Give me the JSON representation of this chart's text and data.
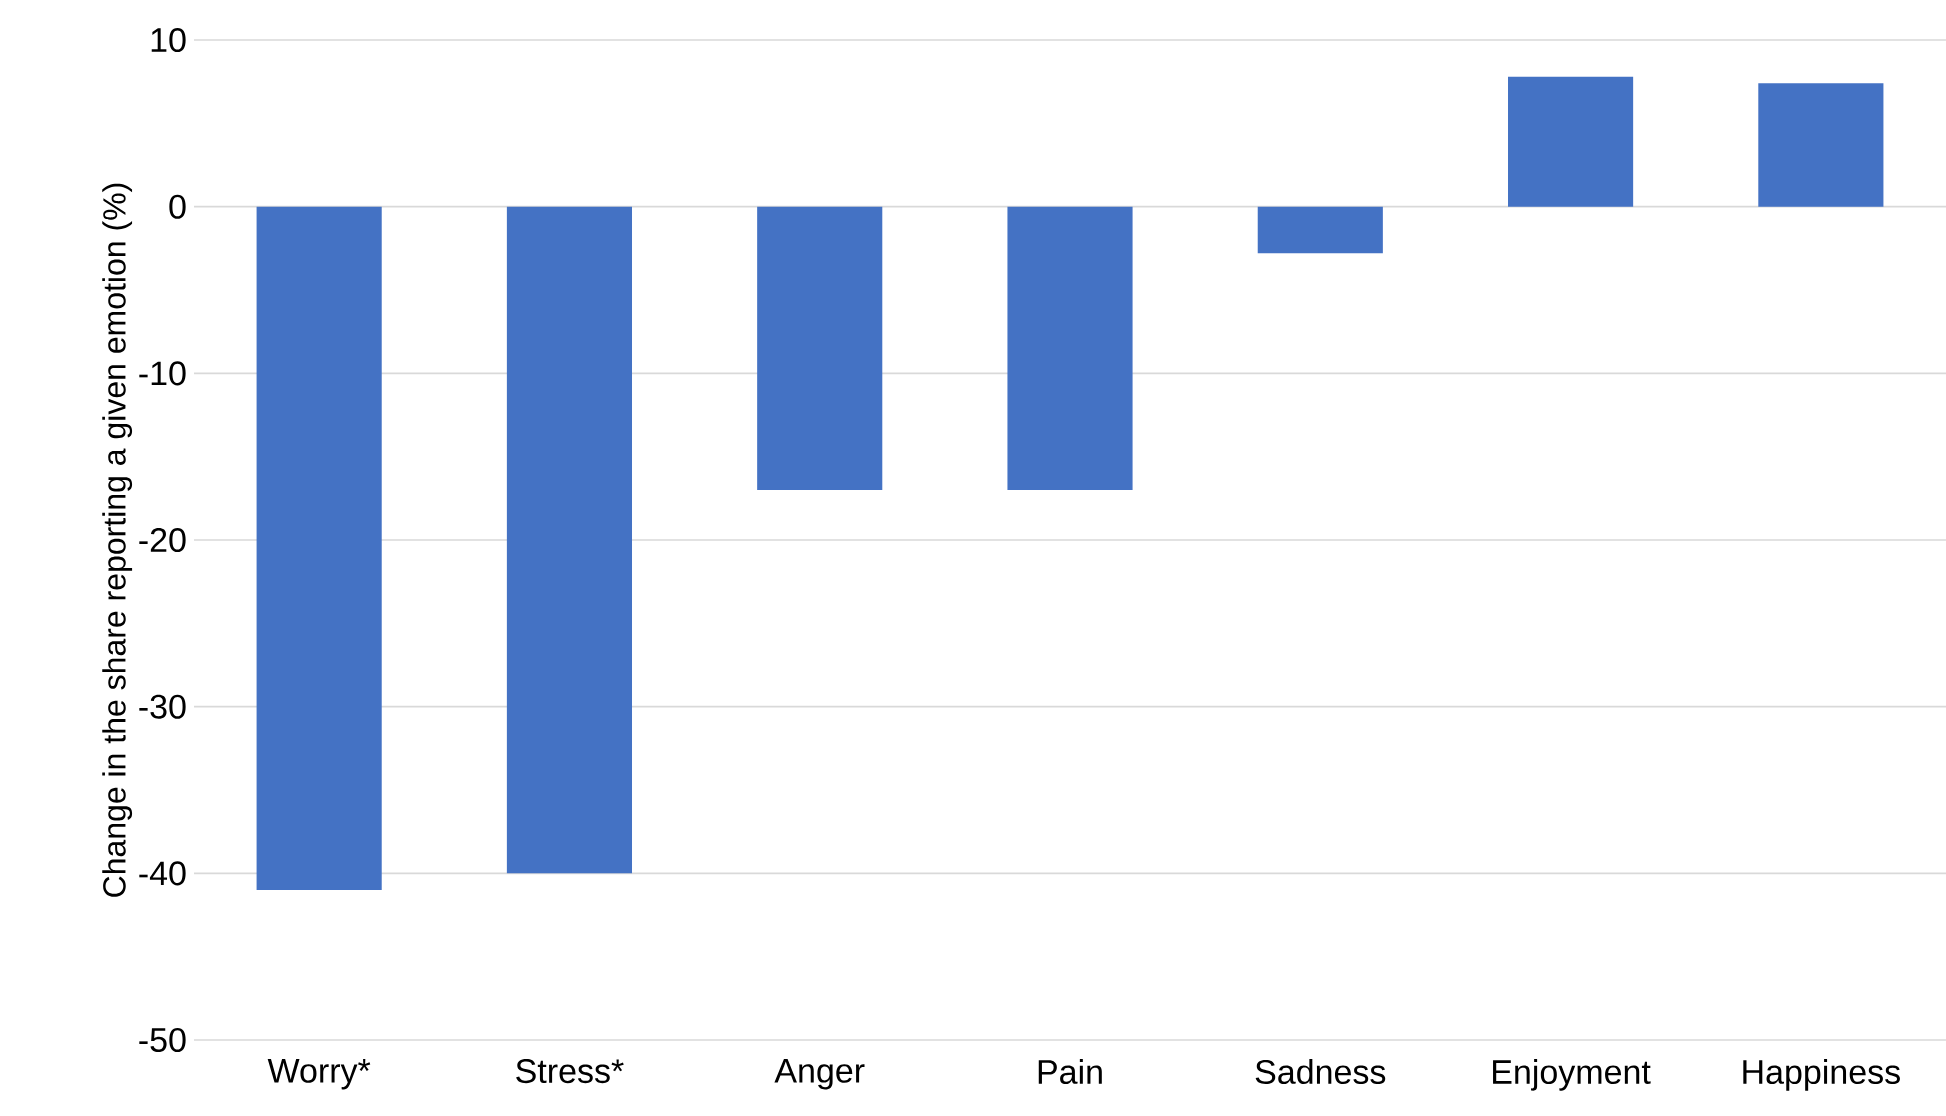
{
  "chart_data": {
    "type": "bar",
    "ylabel": "Change in the share reporting a given emotion (%)",
    "categories": [
      "Worry*",
      "Stress*",
      "Anger",
      "Pain",
      "Sadness",
      "Enjoyment",
      "Happiness"
    ],
    "values": [
      -41,
      -40,
      -17,
      -17,
      -2.8,
      7.8,
      7.4
    ],
    "color": "#4472c4",
    "ylim": [
      -50,
      10
    ],
    "yticks": [
      -50,
      -40,
      -30,
      -20,
      -10,
      0,
      10
    ],
    "grid": "y"
  }
}
